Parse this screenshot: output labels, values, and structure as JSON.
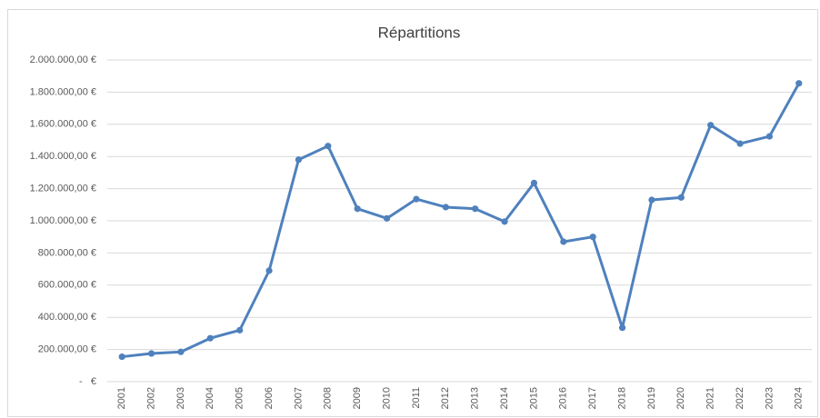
{
  "chart_data": {
    "type": "line",
    "title": "Répartitions",
    "categories": [
      "2001",
      "2002",
      "2003",
      "2004",
      "2005",
      "2006",
      "2007",
      "2008",
      "2009",
      "2010",
      "2011",
      "2012",
      "2013",
      "2014",
      "2015",
      "2016",
      "2017",
      "2018",
      "2019",
      "2020",
      "2021",
      "2022",
      "2023",
      "2024"
    ],
    "series": [
      {
        "name": "Répartitions",
        "color": "#4f81bd",
        "values": [
          155000,
          175000,
          185000,
          270000,
          320000,
          690000,
          1380000,
          1465000,
          1075000,
          1015000,
          1135000,
          1085000,
          1075000,
          995000,
          1235000,
          870000,
          900000,
          335000,
          1130000,
          1145000,
          1595000,
          1480000,
          1525000,
          1855000
        ]
      }
    ],
    "ylim": [
      0,
      2000000
    ],
    "yticks": [
      {
        "value": 0,
        "label": "-   €"
      },
      {
        "value": 200000,
        "label": "200.000,00 €"
      },
      {
        "value": 400000,
        "label": "400.000,00 €"
      },
      {
        "value": 600000,
        "label": "600.000,00 €"
      },
      {
        "value": 800000,
        "label": "800.000,00 €"
      },
      {
        "value": 1000000,
        "label": "1.000.000,00 €"
      },
      {
        "value": 1200000,
        "label": "1.200.000,00 €"
      },
      {
        "value": 1400000,
        "label": "1.400.000,00 €"
      },
      {
        "value": 1600000,
        "label": "1.600.000,00 €"
      },
      {
        "value": 1800000,
        "label": "1.800.000,00 €"
      },
      {
        "value": 2000000,
        "label": "2.000.000,00 €"
      }
    ],
    "grid": true
  }
}
